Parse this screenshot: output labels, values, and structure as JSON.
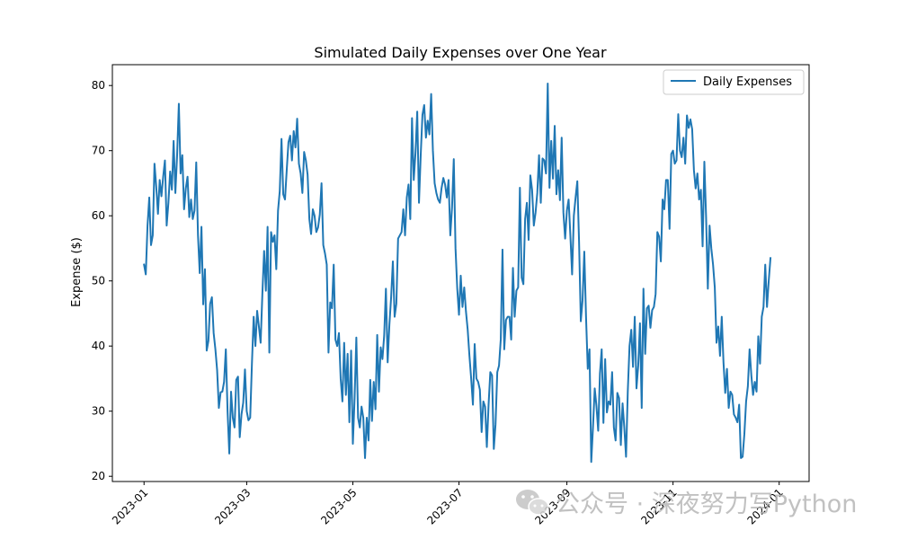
{
  "chart_data": {
    "type": "line",
    "title": "Simulated Daily Expenses over One Year",
    "xlabel": "",
    "ylabel": "Expense ($)",
    "legend": {
      "position": "top-right"
    },
    "grid": false,
    "x_range": [
      "2023-01-01",
      "2023-12-31"
    ],
    "ylim": [
      19.2,
      83.2
    ],
    "x_ticks": [
      "2023-01",
      "2023-03",
      "2023-05",
      "2023-07",
      "2023-09",
      "2023-11",
      "2024-01"
    ],
    "y_ticks": [
      "20",
      "30",
      "40",
      "50",
      "60",
      "70",
      "80"
    ],
    "series": [
      {
        "name": "Daily Expenses",
        "color": "#1f77b4",
        "start_date": "2023-01-01",
        "frequency": "daily",
        "values": [
          52.5,
          51.0,
          58.5,
          62.8,
          55.5,
          57.0,
          68.0,
          64.5,
          60.3,
          65.5,
          63.0,
          66.0,
          68.5,
          58.5,
          62.0,
          66.8,
          64.0,
          71.5,
          63.5,
          69.3,
          77.2,
          66.5,
          69.3,
          61.0,
          64.2,
          66.0,
          59.8,
          62.5,
          59.5,
          60.8,
          68.2,
          57.0,
          51.2,
          58.3,
          46.4,
          51.8,
          39.3,
          40.8,
          46.5,
          47.5,
          42.0,
          39.5,
          36.3,
          30.5,
          32.9,
          33.0,
          34.5,
          39.5,
          30.0,
          23.5,
          33.0,
          29.0,
          27.5,
          34.8,
          35.3,
          26.0,
          29.5,
          31.3,
          36.4,
          30.0,
          28.6,
          29.0,
          37.3,
          44.5,
          40.0,
          45.4,
          43.0,
          40.5,
          48.0,
          54.6,
          48.5,
          58.3,
          39.0,
          57.5,
          56.0,
          57.0,
          51.8,
          60.8,
          63.8,
          71.8,
          63.3,
          62.5,
          67.0,
          71.3,
          72.3,
          68.5,
          73.0,
          70.5,
          74.9,
          68.0,
          66.5,
          63.5,
          69.8,
          68.5,
          66.3,
          59.5,
          57.2,
          61.0,
          60.0,
          57.5,
          58.2,
          60.2,
          65.0,
          55.5,
          54.2,
          52.5,
          39.0,
          46.7,
          45.8,
          52.5,
          41.0,
          40.0,
          42.0,
          35.0,
          31.5,
          40.5,
          32.5,
          38.8,
          28.3,
          39.3,
          25.0,
          32.0,
          41.3,
          29.0,
          27.5,
          30.7,
          29.0,
          22.8,
          29.0,
          25.5,
          34.8,
          28.5,
          34.5,
          30.3,
          41.7,
          33.0,
          39.8,
          38.0,
          41.6,
          48.8,
          37.5,
          43.3,
          47.5,
          53.0,
          44.5,
          46.5,
          56.5,
          57.0,
          57.5,
          61.0,
          57.0,
          62.8,
          64.8,
          59.5,
          75.0,
          65.5,
          69.7,
          76.0,
          62.0,
          69.3,
          75.5,
          77.0,
          72.0,
          74.6,
          72.5,
          78.7,
          70.0,
          65.0,
          63.5,
          62.5,
          62.0,
          64.3,
          65.8,
          64.8,
          62.8,
          65.5,
          57.0,
          61.3,
          68.7,
          55.0,
          48.8,
          44.8,
          50.8,
          46.0,
          49.0,
          45.3,
          42.5,
          38.5,
          35.0,
          31.0,
          40.3,
          35.0,
          34.5,
          33.3,
          26.8,
          31.5,
          30.7,
          24.5,
          31.0,
          36.0,
          35.5,
          24.2,
          28.0,
          36.0,
          37.0,
          41.0,
          54.8,
          39.5,
          44.0,
          44.5,
          44.5,
          41.0,
          52.0,
          44.5,
          48.5,
          49.0,
          64.3,
          50.5,
          49.5,
          59.5,
          62.0,
          56.3,
          66.2,
          64.0,
          58.5,
          60.5,
          63.5,
          69.3,
          62.0,
          68.8,
          68.5,
          66.5,
          80.3,
          64.3,
          71.5,
          65.7,
          73.8,
          63.3,
          67.0,
          62.4,
          72.0,
          60.5,
          56.5,
          60.8,
          62.5,
          57.0,
          51.0,
          60.0,
          62.8,
          65.3,
          56.0,
          43.8,
          47.0,
          54.5,
          44.5,
          36.5,
          39.5,
          22.2,
          27.5,
          33.5,
          30.8,
          27.0,
          35.8,
          39.5,
          28.2,
          38.0,
          29.8,
          31.5,
          31.0,
          36.0,
          27.5,
          25.5,
          32.8,
          32.0,
          24.8,
          31.2,
          27.5,
          23.0,
          33.0,
          40.0,
          42.5,
          36.8,
          44.5,
          33.5,
          37.0,
          43.5,
          30.5,
          48.8,
          38.8,
          45.8,
          46.2,
          42.8,
          45.5,
          46.0,
          48.0,
          57.5,
          56.8,
          53.0,
          62.5,
          61.0,
          65.5,
          65.5,
          58.0,
          69.5,
          70.0,
          68.0,
          68.5,
          75.6,
          70.0,
          69.0,
          72.0,
          68.0,
          75.4,
          73.5,
          74.8,
          73.3,
          67.0,
          64.2,
          66.5,
          62.5,
          64.0,
          55.3,
          68.3,
          59.8,
          48.8,
          58.5,
          55.0,
          52.5,
          49.0,
          40.5,
          43.0,
          38.5,
          44.5,
          37.5,
          32.8,
          36.5,
          30.5,
          33.0,
          32.5,
          29.5,
          29.0,
          28.3,
          31.0,
          22.8,
          23.0,
          26.5,
          31.5,
          33.8,
          39.5,
          35.5,
          32.5,
          34.5,
          33.0,
          41.5,
          37.3,
          44.5,
          46.0,
          52.5,
          46.0,
          50.0,
          53.5
        ]
      }
    ]
  },
  "watermark": {
    "text": "公众号 · 深夜努力写Python",
    "icon": "wechat-icon"
  }
}
